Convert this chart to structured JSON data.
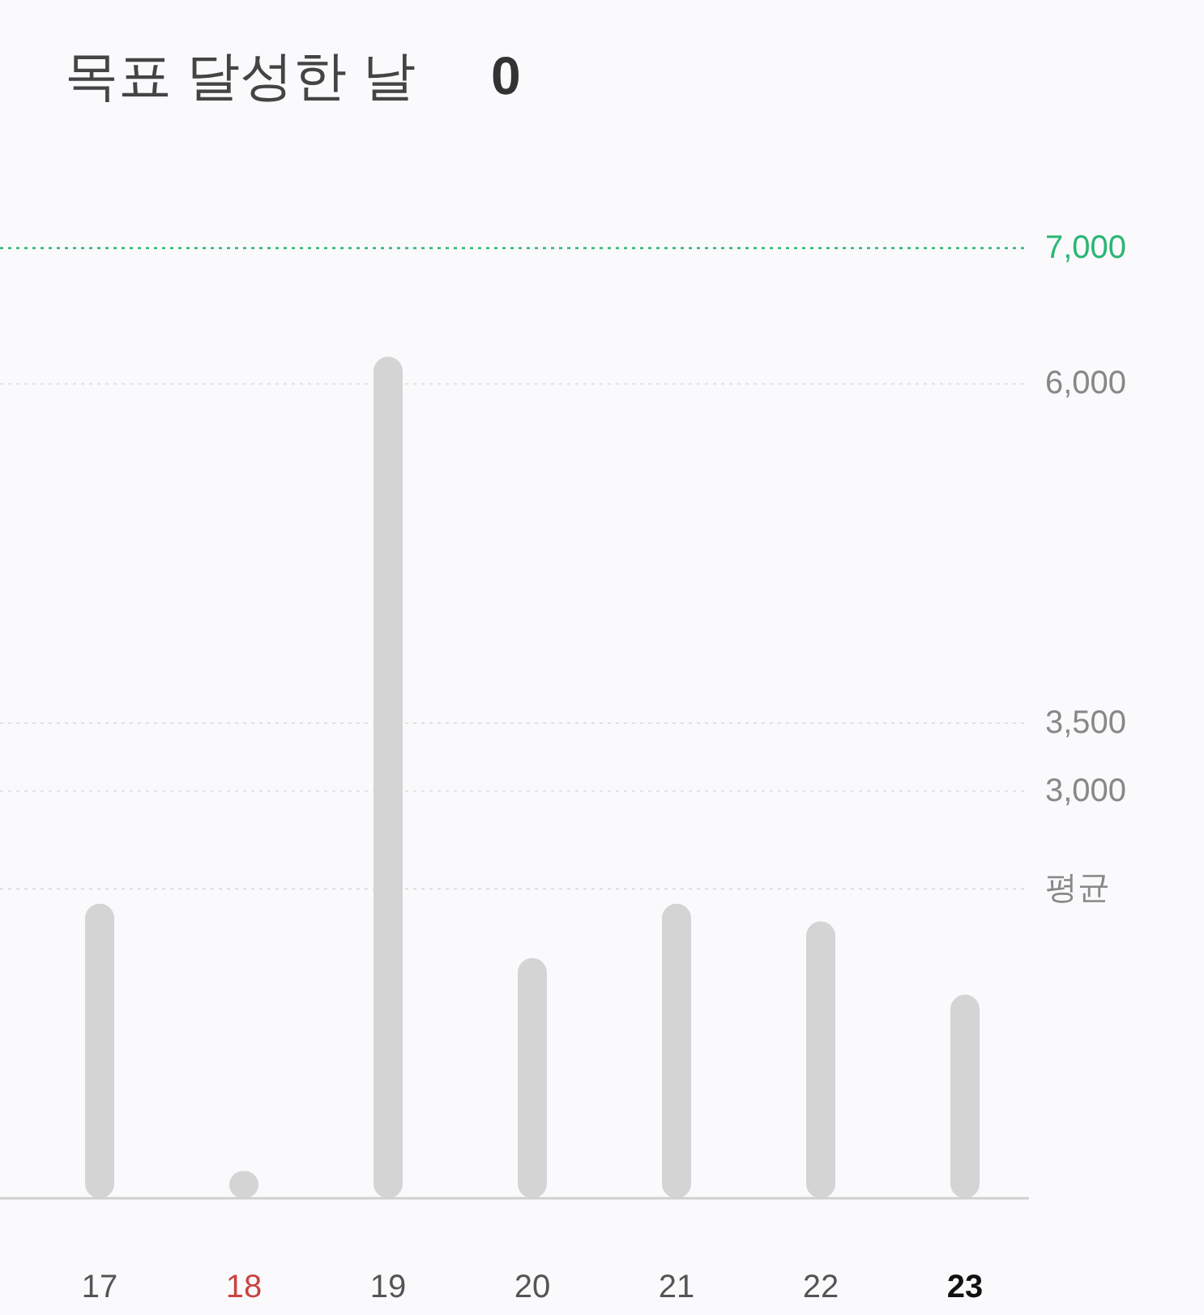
{
  "chart_data": {
    "type": "bar",
    "title": "목표 달성한 날",
    "subtitle": "0",
    "categories": [
      "17",
      "18",
      "19",
      "20",
      "21",
      "22",
      "23"
    ],
    "values": [
      2170,
      200,
      6200,
      1770,
      2170,
      2040,
      1500
    ],
    "color": "#d4d4d4",
    "ylim": [
      0,
      7000
    ],
    "yticks": [
      {
        "value": 3000,
        "label": "3,000"
      },
      {
        "value": 3500,
        "label": "3,500"
      },
      {
        "value": 6000,
        "label": "6,000"
      }
    ],
    "grid": "y",
    "ref_lines": [
      {
        "axis": "y",
        "value": 7000,
        "label": "7,000",
        "color": "#2bb673",
        "line_style": "dotted"
      },
      {
        "axis": "y",
        "value": 2280,
        "label": "평균",
        "color": "#e2e2e2",
        "line_style": "dotted"
      }
    ]
  }
}
